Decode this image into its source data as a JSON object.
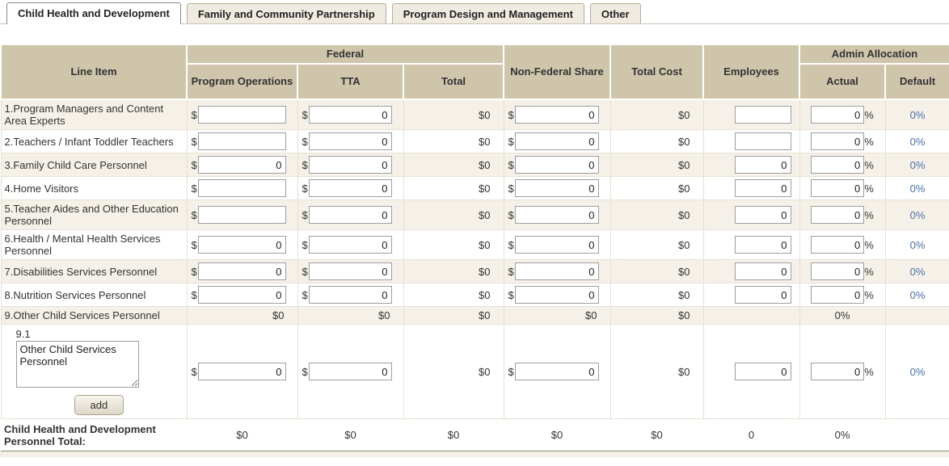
{
  "tabs": [
    {
      "label": "Child Health and Development",
      "active": true
    },
    {
      "label": "Family and Community Partnership",
      "active": false
    },
    {
      "label": "Program Design and Management",
      "active": false
    },
    {
      "label": "Other",
      "active": false
    }
  ],
  "symbols": {
    "dollar": "$",
    "percent": "%"
  },
  "colors": {
    "header_bg": "#cfc5ab",
    "alt_row_bg": "#f5f1e8",
    "default_value_color": "#4a70a8"
  },
  "table": {
    "headers": {
      "line_item": "Line Item",
      "federal": "Federal",
      "program_operations": "Program Operations",
      "tta": "TTA",
      "total": "Total",
      "non_federal_share": "Non-Federal Share",
      "total_cost": "Total Cost",
      "employees": "Employees",
      "admin_allocation": "Admin Allocation",
      "actual": "Actual",
      "default": "Default"
    },
    "rows": [
      {
        "label": "1.Program Managers and Content Area Experts",
        "cells": [
          {
            "t": "di",
            "v": ""
          },
          {
            "t": "di",
            "v": "0"
          },
          {
            "t": "t$",
            "v": "$0"
          },
          {
            "t": "di",
            "v": "0"
          },
          {
            "t": "t$",
            "v": "$0"
          },
          {
            "t": "ni",
            "v": ""
          },
          {
            "t": "pi",
            "v": "0"
          },
          {
            "t": "bl",
            "v": "0%"
          }
        ]
      },
      {
        "label": "2.Teachers / Infant Toddler Teachers",
        "cells": [
          {
            "t": "di",
            "v": ""
          },
          {
            "t": "di",
            "v": "0"
          },
          {
            "t": "t$",
            "v": "$0"
          },
          {
            "t": "di",
            "v": "0"
          },
          {
            "t": "t$",
            "v": "$0"
          },
          {
            "t": "ni",
            "v": ""
          },
          {
            "t": "pi",
            "v": "0"
          },
          {
            "t": "bl",
            "v": "0%"
          }
        ]
      },
      {
        "label": "3.Family Child Care Personnel",
        "cells": [
          {
            "t": "di",
            "v": "0"
          },
          {
            "t": "di",
            "v": "0"
          },
          {
            "t": "t$",
            "v": "$0"
          },
          {
            "t": "di",
            "v": "0"
          },
          {
            "t": "t$",
            "v": "$0"
          },
          {
            "t": "ni",
            "v": "0"
          },
          {
            "t": "pi",
            "v": "0"
          },
          {
            "t": "bl",
            "v": "0%"
          }
        ]
      },
      {
        "label": "4.Home Visitors",
        "cells": [
          {
            "t": "di",
            "v": ""
          },
          {
            "t": "di",
            "v": "0"
          },
          {
            "t": "t$",
            "v": "$0"
          },
          {
            "t": "di",
            "v": "0"
          },
          {
            "t": "t$",
            "v": "$0"
          },
          {
            "t": "ni",
            "v": "0"
          },
          {
            "t": "pi",
            "v": "0"
          },
          {
            "t": "bl",
            "v": "0%"
          }
        ]
      },
      {
        "label": "5.Teacher Aides and Other Education Personnel",
        "cells": [
          {
            "t": "di",
            "v": ""
          },
          {
            "t": "di",
            "v": "0"
          },
          {
            "t": "t$",
            "v": "$0"
          },
          {
            "t": "di",
            "v": "0"
          },
          {
            "t": "t$",
            "v": "$0"
          },
          {
            "t": "ni",
            "v": "0"
          },
          {
            "t": "pi",
            "v": "0"
          },
          {
            "t": "bl",
            "v": "0%"
          }
        ]
      },
      {
        "label": "6.Health / Mental Health Services Personnel",
        "cells": [
          {
            "t": "di",
            "v": "0"
          },
          {
            "t": "di",
            "v": "0"
          },
          {
            "t": "t$",
            "v": "$0"
          },
          {
            "t": "di",
            "v": "0"
          },
          {
            "t": "t$",
            "v": "$0"
          },
          {
            "t": "ni",
            "v": "0"
          },
          {
            "t": "pi",
            "v": "0"
          },
          {
            "t": "bl",
            "v": "0%"
          }
        ]
      },
      {
        "label": "7.Disabilities Services Personnel",
        "cells": [
          {
            "t": "di",
            "v": "0"
          },
          {
            "t": "di",
            "v": "0"
          },
          {
            "t": "t$",
            "v": "$0"
          },
          {
            "t": "di",
            "v": "0"
          },
          {
            "t": "t$",
            "v": "$0"
          },
          {
            "t": "ni",
            "v": "0"
          },
          {
            "t": "pi",
            "v": "0"
          },
          {
            "t": "bl",
            "v": "0%"
          }
        ]
      },
      {
        "label": "8.Nutrition Services Personnel",
        "cells": [
          {
            "t": "di",
            "v": "0"
          },
          {
            "t": "di",
            "v": "0"
          },
          {
            "t": "t$",
            "v": "$0"
          },
          {
            "t": "di",
            "v": "0"
          },
          {
            "t": "t$",
            "v": "$0"
          },
          {
            "t": "ni",
            "v": "0"
          },
          {
            "t": "pi",
            "v": "0"
          },
          {
            "t": "bl",
            "v": "0%"
          }
        ]
      },
      {
        "label": "9.Other Child Services Personnel",
        "cells": [
          {
            "t": "t$",
            "v": "$0"
          },
          {
            "t": "t$",
            "v": "$0"
          },
          {
            "t": "t$",
            "v": "$0"
          },
          {
            "t": "t$",
            "v": "$0"
          },
          {
            "t": "t$",
            "v": "$0"
          },
          {
            "t": "e",
            "v": ""
          },
          {
            "t": "tc",
            "v": "0%"
          },
          {
            "t": "e",
            "v": ""
          }
        ]
      },
      {
        "sub": true,
        "sub_label": "9.1",
        "textarea_value": "Other Child Services Personnel",
        "add_button": "add",
        "cells": [
          {
            "t": "di",
            "v": "0"
          },
          {
            "t": "di",
            "v": "0"
          },
          {
            "t": "t$",
            "v": "$0"
          },
          {
            "t": "di",
            "v": "0"
          },
          {
            "t": "t$",
            "v": "$0"
          },
          {
            "t": "ni",
            "v": "0"
          },
          {
            "t": "pi",
            "v": "0"
          },
          {
            "t": "bl",
            "v": "0%"
          }
        ]
      }
    ],
    "total_row": {
      "label": "Child Health and Development Personnel Total:",
      "values": [
        "$0",
        "$0",
        "$0",
        "$0",
        "$0",
        "0",
        "0%",
        ""
      ]
    }
  }
}
